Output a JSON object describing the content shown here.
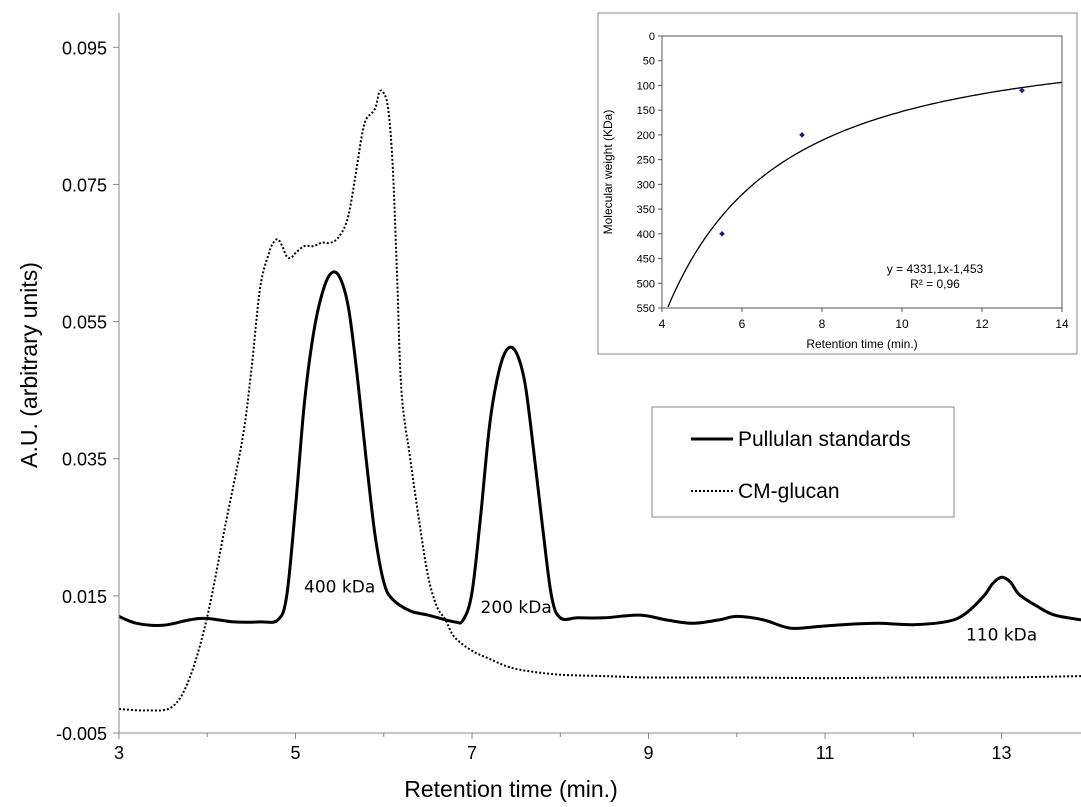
{
  "chart_data": [
    {
      "type": "line",
      "xlabel": "Retention time (min.)",
      "ylabel": "A.U. (arbitrary units)",
      "xlim": [
        3,
        13.9
      ],
      "ylim": [
        -0.005,
        0.1
      ],
      "x_ticks": [
        "3",
        "5",
        "7",
        "9",
        "11",
        "13"
      ],
      "y_ticks": [
        "-0.005",
        "0.015",
        "0.035",
        "0.055",
        "0.075",
        "0.095"
      ],
      "grid": false,
      "legend_position": "right",
      "series": [
        {
          "name": "Pullulan standards",
          "style": "solid",
          "x": [
            3.0,
            3.2,
            3.5,
            3.8,
            4.0,
            4.3,
            4.6,
            4.8,
            4.9,
            5.0,
            5.1,
            5.2,
            5.3,
            5.4,
            5.5,
            5.6,
            5.7,
            5.8,
            5.9,
            6.0,
            6.1,
            6.3,
            6.5,
            6.8,
            6.9,
            7.0,
            7.1,
            7.2,
            7.3,
            7.4,
            7.5,
            7.6,
            7.7,
            7.8,
            7.9,
            8.0,
            8.2,
            8.5,
            8.9,
            9.2,
            9.5,
            9.8,
            10.0,
            10.3,
            10.6,
            10.9,
            11.2,
            11.6,
            12.0,
            12.4,
            12.6,
            12.8,
            12.9,
            13.0,
            13.1,
            13.2,
            13.4,
            13.6,
            13.9
          ],
          "values": [
            0.012,
            0.011,
            0.0107,
            0.0115,
            0.0117,
            0.0112,
            0.0112,
            0.0115,
            0.015,
            0.028,
            0.043,
            0.053,
            0.059,
            0.062,
            0.0615,
            0.057,
            0.047,
            0.035,
            0.024,
            0.017,
            0.0145,
            0.0128,
            0.0122,
            0.0112,
            0.0115,
            0.0155,
            0.027,
            0.04,
            0.0475,
            0.051,
            0.0505,
            0.046,
            0.036,
            0.025,
            0.015,
            0.0118,
            0.0118,
            0.0118,
            0.0122,
            0.0115,
            0.011,
            0.0115,
            0.012,
            0.0115,
            0.0103,
            0.0105,
            0.0108,
            0.011,
            0.0108,
            0.0113,
            0.0125,
            0.015,
            0.0168,
            0.0177,
            0.017,
            0.0152,
            0.0135,
            0.0122,
            0.0115
          ]
        },
        {
          "name": "CM-glucan",
          "style": "dotted",
          "x": [
            3.0,
            3.3,
            3.6,
            3.8,
            4.0,
            4.2,
            4.4,
            4.5,
            4.6,
            4.7,
            4.75,
            4.8,
            4.85,
            4.9,
            4.95,
            5.0,
            5.1,
            5.2,
            5.3,
            5.4,
            5.5,
            5.6,
            5.7,
            5.75,
            5.8,
            5.9,
            5.95,
            6.0,
            6.05,
            6.1,
            6.15,
            6.2,
            6.3,
            6.4,
            6.5,
            6.6,
            6.7,
            6.8,
            7.0,
            7.2,
            7.4,
            7.6,
            8.0,
            8.5,
            9.0,
            10.0,
            11.0,
            12.0,
            13.0,
            13.9
          ],
          "values": [
            -0.0015,
            -0.0017,
            -0.0012,
            0.003,
            0.012,
            0.025,
            0.038,
            0.048,
            0.06,
            0.065,
            0.0665,
            0.067,
            0.066,
            0.0645,
            0.0643,
            0.065,
            0.066,
            0.066,
            0.0665,
            0.0665,
            0.0675,
            0.0705,
            0.078,
            0.082,
            0.0845,
            0.086,
            0.0885,
            0.0883,
            0.086,
            0.078,
            0.062,
            0.045,
            0.035,
            0.026,
            0.018,
            0.0135,
            0.0115,
            0.009,
            0.007,
            0.0058,
            0.0047,
            0.0041,
            0.0035,
            0.0033,
            0.0031,
            0.0031,
            0.003,
            0.0031,
            0.0031,
            0.0033
          ]
        }
      ],
      "annotations": [
        {
          "text": "400 kDa",
          "x": 5.5,
          "y": 0.0155
        },
        {
          "text": "200 kDa",
          "x": 7.5,
          "y": 0.0125
        },
        {
          "text": "110 kDa",
          "x": 13.0,
          "y": 0.0085
        }
      ]
    },
    {
      "type": "scatter",
      "xlabel": "Retention time (min.)",
      "ylabel": "Molecular weight (KDa)",
      "xlim": [
        4,
        14
      ],
      "ylim": [
        0,
        550
      ],
      "y_reversed": true,
      "x_ticks": [
        "4",
        "6",
        "8",
        "10",
        "12",
        "14"
      ],
      "y_ticks": [
        "0",
        "50",
        "100",
        "150",
        "200",
        "250",
        "300",
        "350",
        "400",
        "450",
        "500",
        "550"
      ],
      "grid": false,
      "points": [
        {
          "x": 5.5,
          "y": 400
        },
        {
          "x": 7.5,
          "y": 200
        },
        {
          "x": 13.0,
          "y": 110
        }
      ],
      "trendline": {
        "kind": "power",
        "coefficient": 4331.1,
        "exponent": -1.453,
        "x_from": 4.15,
        "x_to": 14
      },
      "equation_text": "y = 4331,1x-1,453",
      "r2_text": "R² = 0,96",
      "point_color": "#1f1f7a"
    }
  ]
}
